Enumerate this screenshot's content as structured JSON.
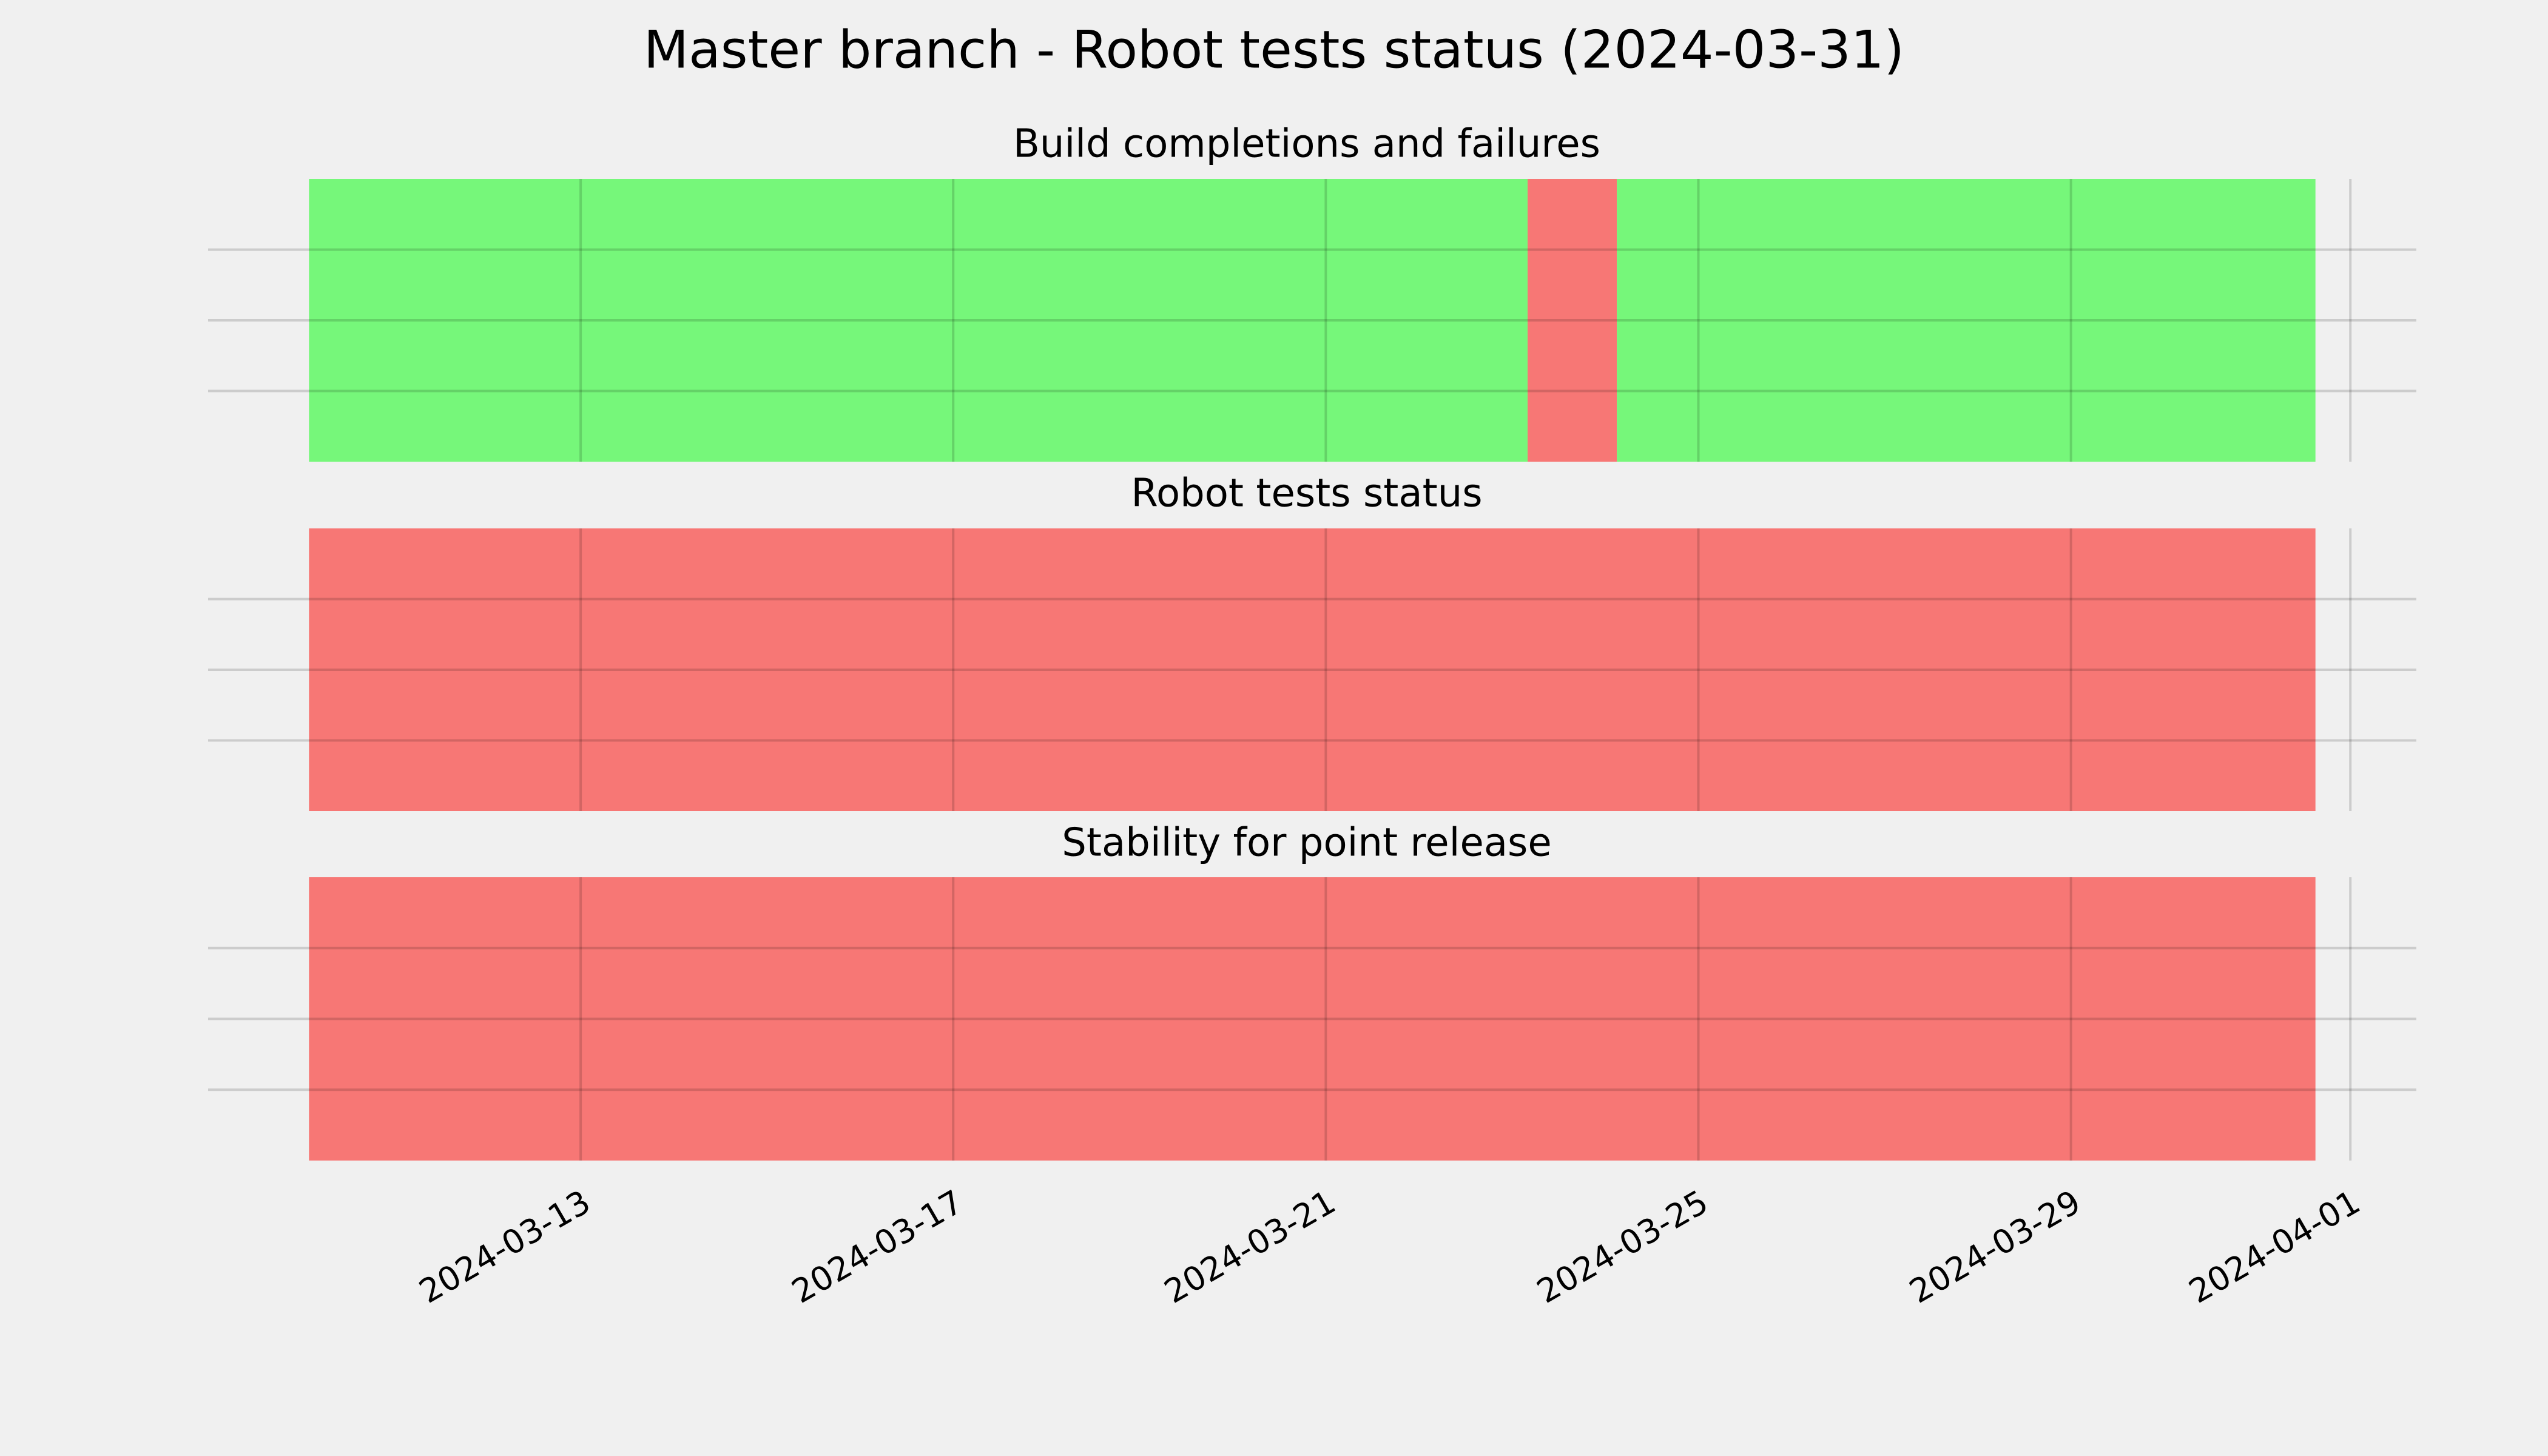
{
  "title": "Master branch - Robot tests status (2024-03-31)",
  "shared_x": {
    "xlim": [
      "2024-03-09T00:00",
      "2024-04-01T17:00"
    ],
    "xticks": [
      "2024-03-13",
      "2024-03-17",
      "2024-03-21",
      "2024-03-25",
      "2024-03-29",
      "2024-04-01"
    ]
  },
  "chart_data": [
    {
      "type": "timeline",
      "title": "Build completions and failures",
      "ylim": [
        0,
        1
      ],
      "yticks": [
        0.25,
        0.5,
        0.75
      ],
      "show_ytick_labels": false,
      "grid": true,
      "spans": [
        {
          "start": "2024-03-10T02:00",
          "end": "2024-03-23T04:00",
          "color": "#76f77a"
        },
        {
          "start": "2024-03-23T04:00",
          "end": "2024-03-24T03:00",
          "color": "#f77775"
        },
        {
          "start": "2024-03-24T03:00",
          "end": "2024-03-31T15:00",
          "color": "#76f77a"
        }
      ]
    },
    {
      "type": "timeline",
      "title": "Robot tests status",
      "ylim": [
        0,
        1
      ],
      "yticks": [
        0.25,
        0.5,
        0.75
      ],
      "show_ytick_labels": false,
      "grid": true,
      "spans": [
        {
          "start": "2024-03-10T02:00",
          "end": "2024-03-31T15:00",
          "color": "#f77775"
        }
      ]
    },
    {
      "type": "timeline",
      "title": "Stability for point release",
      "ylim": [
        0,
        1
      ],
      "yticks": [
        0.25,
        0.5,
        0.75
      ],
      "show_ytick_labels": false,
      "grid": true,
      "spans": [
        {
          "start": "2024-03-10T02:00",
          "end": "2024-03-31T15:00",
          "color": "#f77775"
        }
      ]
    }
  ]
}
